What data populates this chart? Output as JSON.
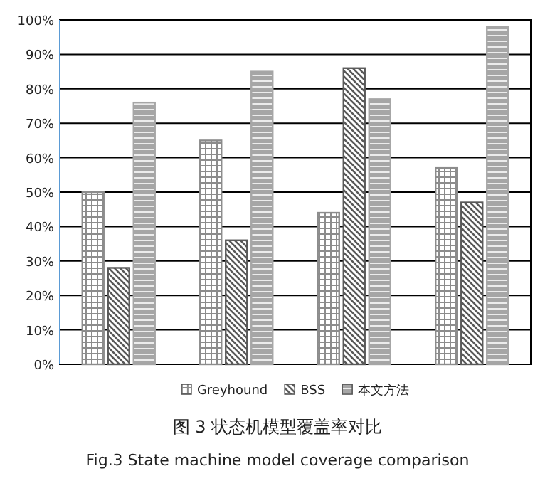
{
  "chart_data": {
    "type": "bar",
    "title": "图 3 状态机模型覆盖率对比",
    "subtitle": "Fig.3 State machine model coverage comparison",
    "categories": [
      null,
      null,
      null,
      null
    ],
    "series": [
      {
        "name": "Greyhound",
        "color": "#8c8c8c",
        "values": [
          50,
          65,
          44,
          57
        ]
      },
      {
        "name": "BSS",
        "color": "#595959",
        "values": [
          28,
          36,
          86,
          47
        ]
      },
      {
        "name": "本文方法",
        "color": "#a6a6a6",
        "values": [
          76,
          85,
          77,
          98
        ]
      }
    ],
    "ylim": [
      0,
      100
    ],
    "yticks": [
      {
        "value": 0,
        "label": "0%"
      },
      {
        "value": 10,
        "label": "10%"
      },
      {
        "value": 20,
        "label": "20%"
      },
      {
        "value": 30,
        "label": "30%"
      },
      {
        "value": 40,
        "label": "40%"
      },
      {
        "value": 50,
        "label": "50%"
      },
      {
        "value": 60,
        "label": "60%"
      },
      {
        "value": 70,
        "label": "70%"
      },
      {
        "value": 80,
        "label": "80%"
      },
      {
        "value": 90,
        "label": "90%"
      },
      {
        "value": 100,
        "label": "100%"
      }
    ],
    "grid": "y",
    "legend": "bottom"
  }
}
